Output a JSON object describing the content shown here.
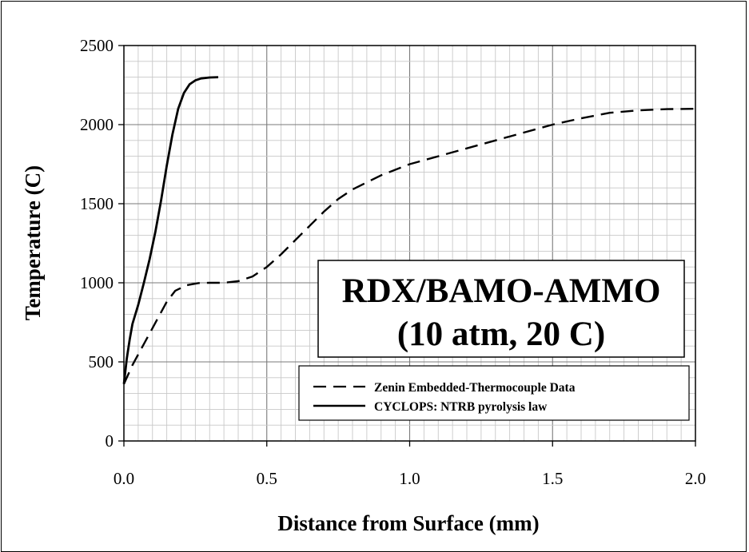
{
  "chart_data": {
    "type": "line",
    "title": "",
    "xlabel": "Distance from Surface (mm)",
    "ylabel": "Temperature (C)",
    "xlim": [
      0.0,
      2.0
    ],
    "ylim": [
      0,
      2500
    ],
    "xticks": [
      "0.0",
      "0.5",
      "1.0",
      "1.5",
      "2.0"
    ],
    "yticks": [
      "0",
      "500",
      "1000",
      "1500",
      "2000",
      "2500"
    ],
    "grid": true,
    "legend_position": "bottom-right",
    "annotation": [
      "RDX/BAMO-AMMO",
      "(10 atm, 20 C)"
    ],
    "series": [
      {
        "name": "Zenin Embedded-Thermocouple Data",
        "style": "dashed",
        "color": "#000000",
        "x": [
          0.0,
          0.03,
          0.06,
          0.09,
          0.12,
          0.15,
          0.18,
          0.22,
          0.26,
          0.3,
          0.35,
          0.4,
          0.45,
          0.5,
          0.55,
          0.6,
          0.65,
          0.7,
          0.75,
          0.8,
          0.9,
          1.0,
          1.1,
          1.2,
          1.3,
          1.4,
          1.5,
          1.6,
          1.7,
          1.8,
          1.9,
          2.0
        ],
        "y": [
          360,
          480,
          580,
          680,
          780,
          880,
          950,
          985,
          998,
          1000,
          1000,
          1010,
          1040,
          1100,
          1180,
          1270,
          1360,
          1450,
          1530,
          1590,
          1680,
          1750,
          1800,
          1850,
          1900,
          1950,
          2000,
          2040,
          2075,
          2090,
          2098,
          2100
        ]
      },
      {
        "name": "CYCLOPS: NTRB pyrolysis law",
        "style": "solid",
        "color": "#000000",
        "x": [
          0.0,
          0.01,
          0.02,
          0.03,
          0.05,
          0.07,
          0.09,
          0.11,
          0.13,
          0.15,
          0.17,
          0.19,
          0.21,
          0.23,
          0.25,
          0.27,
          0.3,
          0.33
        ],
        "y": [
          360,
          520,
          640,
          740,
          860,
          1000,
          1150,
          1320,
          1520,
          1740,
          1940,
          2100,
          2200,
          2255,
          2280,
          2292,
          2298,
          2300
        ]
      }
    ]
  }
}
